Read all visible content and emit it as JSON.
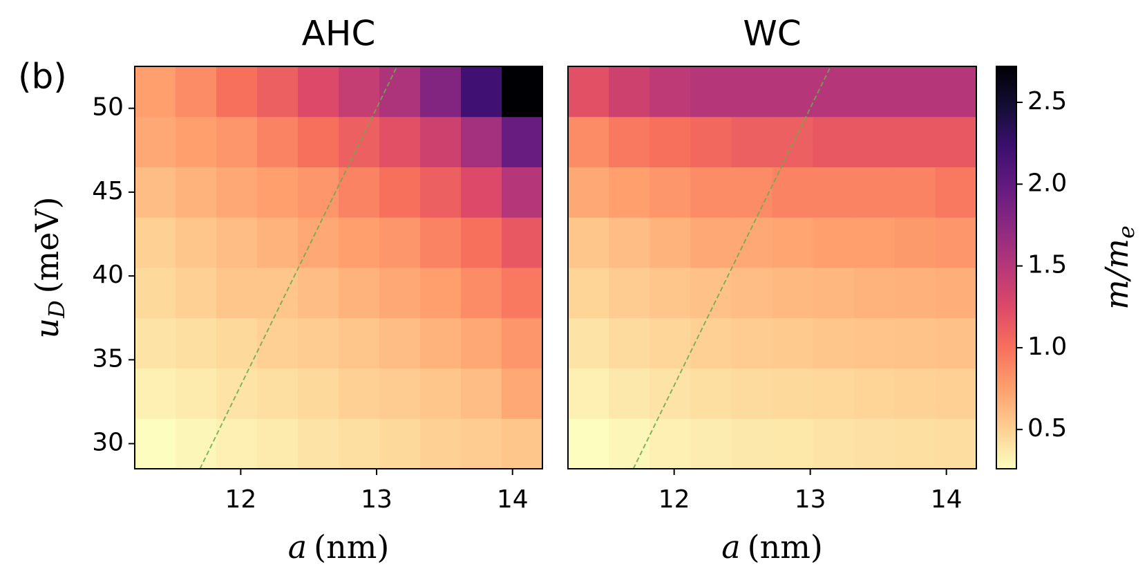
{
  "chart_data": [
    {
      "type": "heatmap",
      "title": "AHC",
      "annotation": "(b)",
      "xlabel": {
        "var": "a",
        "unit": "(nm)"
      },
      "ylabel": {
        "var": "u",
        "sub": "D",
        "unit": "(meV)"
      },
      "xbins": [
        11.22,
        11.52,
        11.82,
        12.12,
        12.42,
        12.72,
        13.02,
        13.32,
        13.62,
        13.92,
        14.22
      ],
      "ybins": [
        28.5,
        31.5,
        34.5,
        37.5,
        40.5,
        43.5,
        46.5,
        49.5,
        52.5
      ],
      "xlim": [
        11.22,
        14.22
      ],
      "ylim": [
        28.5,
        52.5
      ],
      "xticks": [
        12,
        13,
        14
      ],
      "yticks": [
        30,
        35,
        40,
        45,
        50
      ],
      "values": [
        [
          0.26,
          0.3,
          0.33,
          0.36,
          0.4,
          0.42,
          0.45,
          0.5,
          0.52,
          0.55
        ],
        [
          0.33,
          0.36,
          0.4,
          0.42,
          0.45,
          0.5,
          0.52,
          0.55,
          0.6,
          0.7
        ],
        [
          0.4,
          0.42,
          0.45,
          0.5,
          0.52,
          0.55,
          0.6,
          0.65,
          0.7,
          0.8
        ],
        [
          0.45,
          0.5,
          0.55,
          0.55,
          0.6,
          0.65,
          0.7,
          0.75,
          0.85,
          0.95
        ],
        [
          0.5,
          0.55,
          0.6,
          0.65,
          0.7,
          0.75,
          0.8,
          0.9,
          1.0,
          1.15
        ],
        [
          0.6,
          0.65,
          0.7,
          0.75,
          0.8,
          0.9,
          1.0,
          1.1,
          1.25,
          1.5
        ],
        [
          0.7,
          0.75,
          0.8,
          0.9,
          1.0,
          1.1,
          1.2,
          1.35,
          1.6,
          1.95
        ],
        [
          0.75,
          0.85,
          1.0,
          1.1,
          1.25,
          1.4,
          1.55,
          1.8,
          2.2,
          2.72
        ]
      ],
      "guide_line": {
        "x": [
          11.7,
          13.15
        ],
        "y": [
          28.5,
          52.5
        ],
        "color": "#6aaa4f"
      },
      "colormap": "magma_r",
      "clim": [
        0.26,
        2.72
      ]
    },
    {
      "type": "heatmap",
      "title": "WC",
      "xlabel": {
        "var": "a",
        "unit": "(nm)"
      },
      "xbins": [
        11.22,
        11.52,
        11.82,
        12.12,
        12.42,
        12.72,
        13.02,
        13.32,
        13.62,
        13.92,
        14.22
      ],
      "ybins": [
        28.5,
        31.5,
        34.5,
        37.5,
        40.5,
        43.5,
        46.5,
        49.5,
        52.5
      ],
      "xlim": [
        11.22,
        14.22
      ],
      "ylim": [
        28.5,
        52.5
      ],
      "xticks": [
        12,
        13,
        14
      ],
      "values": [
        [
          0.26,
          0.3,
          0.33,
          0.35,
          0.37,
          0.38,
          0.4,
          0.41,
          0.42,
          0.43
        ],
        [
          0.33,
          0.37,
          0.4,
          0.42,
          0.44,
          0.45,
          0.46,
          0.48,
          0.49,
          0.5
        ],
        [
          0.4,
          0.44,
          0.47,
          0.5,
          0.52,
          0.53,
          0.55,
          0.56,
          0.57,
          0.58
        ],
        [
          0.48,
          0.52,
          0.55,
          0.58,
          0.6,
          0.62,
          0.63,
          0.65,
          0.66,
          0.67
        ],
        [
          0.55,
          0.6,
          0.65,
          0.7,
          0.7,
          0.72,
          0.75,
          0.75,
          0.78,
          0.8
        ],
        [
          0.7,
          0.75,
          0.8,
          0.85,
          0.85,
          0.9,
          0.9,
          0.9,
          0.9,
          0.95
        ],
        [
          0.85,
          0.95,
          1.0,
          1.05,
          1.1,
          1.1,
          1.15,
          1.15,
          1.15,
          1.15
        ],
        [
          1.2,
          1.35,
          1.45,
          1.5,
          1.5,
          1.5,
          1.5,
          1.5,
          1.5,
          1.5
        ]
      ],
      "guide_line": {
        "x": [
          11.7,
          13.15
        ],
        "y": [
          28.5,
          52.5
        ],
        "color": "#6aaa4f"
      },
      "colormap": "magma_r",
      "clim": [
        0.26,
        2.72
      ],
      "colorbar": {
        "label": {
          "var": "m/m",
          "sub": "e"
        },
        "ticks": [
          0.5,
          {
            "value": 1,
            "label": "1.0"
          },
          1.5,
          {
            "value": 2,
            "label": "2.0"
          },
          2.5
        ]
      }
    }
  ]
}
